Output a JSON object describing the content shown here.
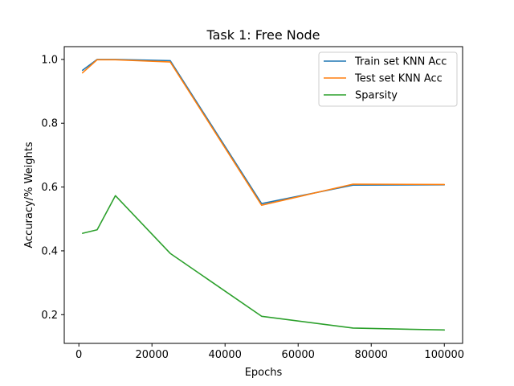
{
  "chart_data": {
    "type": "line",
    "title": "Task 1: Free Node",
    "xlabel": "Epochs",
    "ylabel": "Accuracy/% Weights",
    "xlim": [
      -4000,
      105000
    ],
    "ylim": [
      0.11,
      1.04
    ],
    "xticks": [
      0,
      20000,
      40000,
      60000,
      80000,
      100000
    ],
    "xtick_labels": [
      "0",
      "20000",
      "40000",
      "60000",
      "80000",
      "100000"
    ],
    "yticks": [
      0.2,
      0.4,
      0.6,
      0.8,
      1.0
    ],
    "ytick_labels": [
      "0.2",
      "0.4",
      "0.6",
      "0.8",
      "1.0"
    ],
    "grid": false,
    "legend_position": "top-right",
    "series": [
      {
        "name": "Train set KNN Acc",
        "color": "#1f77b4",
        "x": [
          1000,
          5000,
          10000,
          25000,
          50000,
          75000,
          100000
        ],
        "y": [
          0.966,
          1.0,
          1.0,
          0.996,
          0.548,
          0.606,
          0.607
        ]
      },
      {
        "name": "Test set KNN Acc",
        "color": "#ff7f0e",
        "x": [
          1000,
          5000,
          10000,
          25000,
          50000,
          75000,
          100000
        ],
        "y": [
          0.958,
          0.999,
          0.999,
          0.992,
          0.543,
          0.609,
          0.608
        ]
      },
      {
        "name": "Sparsity",
        "color": "#2ca02c",
        "x": [
          1000,
          5000,
          10000,
          25000,
          50000,
          75000,
          100000
        ],
        "y": [
          0.455,
          0.466,
          0.573,
          0.392,
          0.195,
          0.158,
          0.152
        ]
      }
    ]
  }
}
